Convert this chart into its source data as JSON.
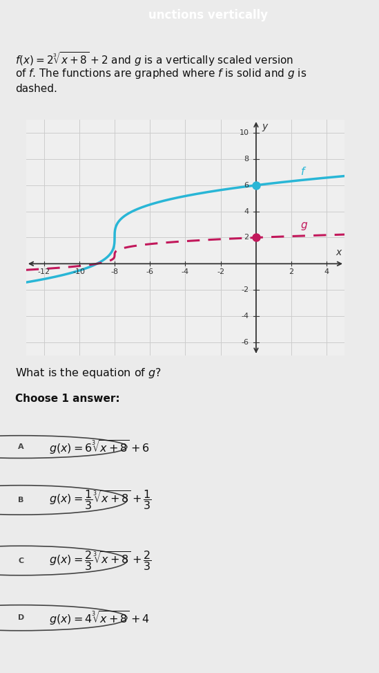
{
  "title_bar_text": "unctions vertically",
  "title_bar_color": "#1e3a5f",
  "title_bar_text_color": "#ffffff",
  "f_color": "#29b6d6",
  "g_color": "#c2185b",
  "x_min": -13,
  "x_max": 5,
  "y_min": -7,
  "y_max": 11,
  "x_ticks": [
    -12,
    -10,
    -8,
    -6,
    -4,
    -2,
    2,
    4
  ],
  "y_ticks": [
    -6,
    -4,
    -2,
    2,
    4,
    6,
    8,
    10
  ],
  "question_text": "What is the equation of $g$?",
  "choose_text": "Choose 1 answer:",
  "answer_A_label": "A",
  "answer_A": "$g(x) = 6\\sqrt[3]{x+8}+6$",
  "answer_B_label": "B",
  "answer_B": "$g(x) = \\dfrac{1}{3}\\sqrt[3]{x+8}+\\dfrac{1}{3}$",
  "answer_C_label": "C",
  "answer_C": "$g(x) = \\dfrac{2}{3}\\sqrt[3]{x+8}+\\dfrac{2}{3}$",
  "answer_D_label": "D",
  "answer_D": "$g(x) = 4\\sqrt[3]{x+8}+4$",
  "bg_color": "#ebebeb",
  "graph_bg": "#efefef",
  "grid_color": "#cccccc",
  "axis_color": "#333333",
  "text_color": "#111111",
  "answer_border_color": "#bbbbbb",
  "circle_color": "#444444",
  "answer_bg": "#f5f5f5"
}
